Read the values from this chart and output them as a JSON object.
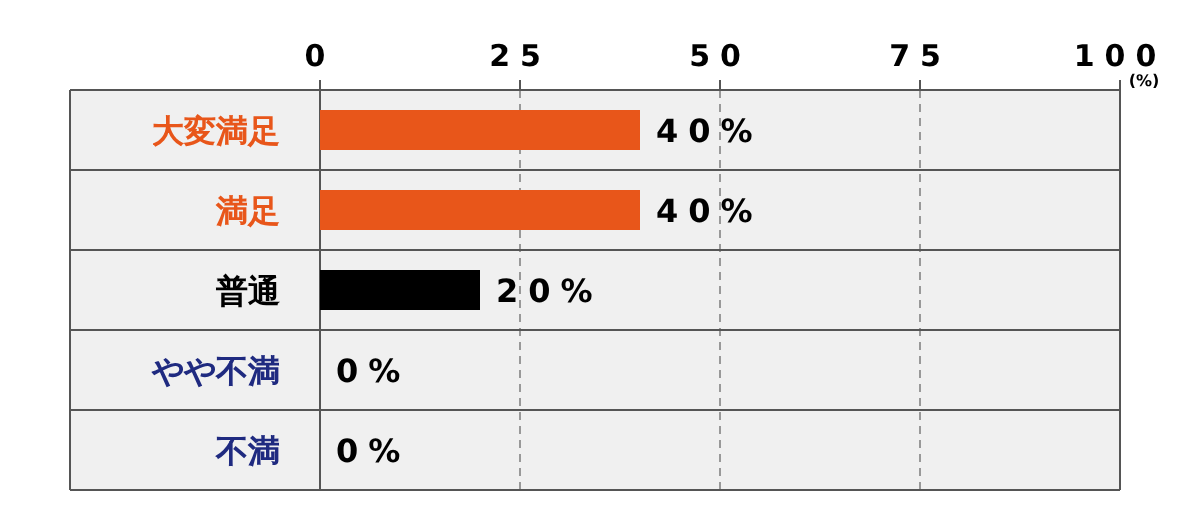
{
  "chart_data": {
    "type": "bar",
    "orientation": "horizontal",
    "xlabel": "(%)",
    "categories": [
      "大変満足",
      "満足",
      "普通",
      "やや不満",
      "不満"
    ],
    "values": [
      40,
      40,
      20,
      0,
      0
    ],
    "colors": [
      "#e8561a",
      "#e8561a",
      "#000000",
      "#1f2a80",
      "#1f2a80"
    ],
    "value_labels": [
      "40%",
      "40%",
      "20%",
      "0%",
      "0%"
    ],
    "xlim": [
      0,
      100
    ],
    "xticks": [
      0,
      25,
      50,
      75,
      100
    ],
    "grid": "x"
  }
}
